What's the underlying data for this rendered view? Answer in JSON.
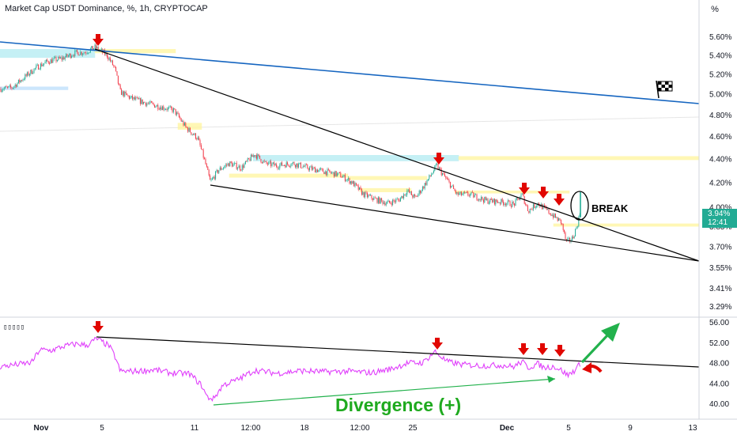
{
  "header": {
    "title": "Market Cap USDT Dominance, %, 1h, CRYPTOCAP",
    "scale_button": "%"
  },
  "colors": {
    "candle_up": "#22ab94",
    "candle_down": "#f23645",
    "rsi_line": "#e040fb",
    "trendline": "#000000",
    "blue_trendline": "#1565c0",
    "arrow_red": "#e10600",
    "arrow_green": "#22b14c",
    "divergence_text": "#1faa1f",
    "badge": "#22ab94"
  },
  "chart_data": [
    {
      "type": "candlestick",
      "title": "Market Cap USDT Dominance, %, 1h, CRYPTOCAP",
      "y_axis": {
        "scale": "log",
        "ticks": [
          "5.60%",
          "5.40%",
          "5.20%",
          "5.00%",
          "4.80%",
          "4.60%",
          "4.40%",
          "4.20%",
          "4.00%",
          "3.85%",
          "3.70%",
          "3.55%",
          "3.41%",
          "3.29%"
        ]
      },
      "x_axis": {
        "ticks": [
          "Nov",
          "5",
          "11",
          "12:00",
          "18",
          "12:00",
          "25",
          "Dec",
          "5",
          "9",
          "13"
        ]
      },
      "last_price": "3.94%",
      "countdown": "12:41",
      "anchor_points": [
        {
          "x": 0,
          "y": 5.05
        },
        {
          "x": 15,
          "y": 5.06
        },
        {
          "x": 30,
          "y": 5.16
        },
        {
          "x": 45,
          "y": 5.26
        },
        {
          "x": 60,
          "y": 5.33
        },
        {
          "x": 78,
          "y": 5.36
        },
        {
          "x": 95,
          "y": 5.42
        },
        {
          "x": 108,
          "y": 5.43
        },
        {
          "x": 120,
          "y": 5.48
        },
        {
          "x": 135,
          "y": 5.4
        },
        {
          "x": 145,
          "y": 5.26
        },
        {
          "x": 152,
          "y": 5.02
        },
        {
          "x": 165,
          "y": 4.96
        },
        {
          "x": 180,
          "y": 4.92
        },
        {
          "x": 200,
          "y": 4.88
        },
        {
          "x": 220,
          "y": 4.84
        },
        {
          "x": 235,
          "y": 4.68
        },
        {
          "x": 250,
          "y": 4.58
        },
        {
          "x": 258,
          "y": 4.4
        },
        {
          "x": 266,
          "y": 4.2
        },
        {
          "x": 276,
          "y": 4.3
        },
        {
          "x": 290,
          "y": 4.36
        },
        {
          "x": 305,
          "y": 4.32
        },
        {
          "x": 322,
          "y": 4.44
        },
        {
          "x": 335,
          "y": 4.36
        },
        {
          "x": 350,
          "y": 4.34
        },
        {
          "x": 370,
          "y": 4.36
        },
        {
          "x": 390,
          "y": 4.32
        },
        {
          "x": 410,
          "y": 4.29
        },
        {
          "x": 430,
          "y": 4.26
        },
        {
          "x": 445,
          "y": 4.2
        },
        {
          "x": 460,
          "y": 4.1
        },
        {
          "x": 475,
          "y": 4.06
        },
        {
          "x": 490,
          "y": 4.03
        },
        {
          "x": 505,
          "y": 4.06
        },
        {
          "x": 515,
          "y": 4.13
        },
        {
          "x": 525,
          "y": 4.07
        },
        {
          "x": 535,
          "y": 4.16
        },
        {
          "x": 545,
          "y": 4.26
        },
        {
          "x": 552,
          "y": 4.34
        },
        {
          "x": 565,
          "y": 4.22
        },
        {
          "x": 578,
          "y": 4.1
        },
        {
          "x": 595,
          "y": 4.1
        },
        {
          "x": 615,
          "y": 4.05
        },
        {
          "x": 635,
          "y": 4.04
        },
        {
          "x": 650,
          "y": 4.02
        },
        {
          "x": 660,
          "y": 4.1
        },
        {
          "x": 668,
          "y": 3.97
        },
        {
          "x": 680,
          "y": 4.03
        },
        {
          "x": 690,
          "y": 3.98
        },
        {
          "x": 700,
          "y": 3.93
        },
        {
          "x": 710,
          "y": 3.88
        },
        {
          "x": 716,
          "y": 3.73
        },
        {
          "x": 724,
          "y": 3.76
        },
        {
          "x": 730,
          "y": 3.86
        },
        {
          "x": 734,
          "y": 3.96
        }
      ],
      "supply_demand_zones": [
        {
          "x0": 0,
          "x1": 120,
          "y0": 5.37,
          "y1": 5.46,
          "color": "#b2ebf2"
        },
        {
          "x0": 120,
          "x1": 222,
          "y0": 5.42,
          "y1": 5.46,
          "color": "#fff59d"
        },
        {
          "x0": 0,
          "x1": 86,
          "y0": 5.04,
          "y1": 5.07,
          "color": "#bbdefb"
        },
        {
          "x0": 225,
          "x1": 255,
          "y0": 4.66,
          "y1": 4.72,
          "color": "#fff59d"
        },
        {
          "x0": 320,
          "x1": 580,
          "y0": 4.38,
          "y1": 4.43,
          "color": "#b2ebf2"
        },
        {
          "x0": 580,
          "x1": 884,
          "y0": 4.39,
          "y1": 4.42,
          "color": "#fff59d"
        },
        {
          "x0": 290,
          "x1": 440,
          "y0": 4.24,
          "y1": 4.27,
          "color": "#fff59d"
        },
        {
          "x0": 440,
          "x1": 540,
          "y0": 4.22,
          "y1": 4.25,
          "color": "#fff59d"
        },
        {
          "x0": 455,
          "x1": 520,
          "y0": 4.12,
          "y1": 4.15,
          "color": "#fff59d"
        },
        {
          "x0": 575,
          "x1": 720,
          "y0": 4.11,
          "y1": 4.13,
          "color": "#fff59d"
        },
        {
          "x0": 700,
          "x1": 884,
          "y0": 3.85,
          "y1": 3.87,
          "color": "#fff59d"
        }
      ],
      "annotations": [
        "BREAK"
      ]
    },
    {
      "type": "line",
      "series": [
        {
          "name": "",
          "color": "#e040fb"
        }
      ],
      "y_axis": {
        "ticks": [
          "56.00",
          "52.00",
          "48.00",
          "44.00",
          "40.00"
        ],
        "ylim": [
          37.5,
          56.3
        ]
      },
      "anchor_points": [
        {
          "x": 0,
          "y": 47.2
        },
        {
          "x": 20,
          "y": 47.6
        },
        {
          "x": 40,
          "y": 48.0
        },
        {
          "x": 50,
          "y": 50.5
        },
        {
          "x": 65,
          "y": 50.4
        },
        {
          "x": 80,
          "y": 51.2
        },
        {
          "x": 98,
          "y": 51.7
        },
        {
          "x": 110,
          "y": 51.4
        },
        {
          "x": 122,
          "y": 52.7
        },
        {
          "x": 138,
          "y": 51.3
        },
        {
          "x": 146,
          "y": 49.0
        },
        {
          "x": 152,
          "y": 46.3
        },
        {
          "x": 170,
          "y": 46.3
        },
        {
          "x": 195,
          "y": 46.6
        },
        {
          "x": 215,
          "y": 46.0
        },
        {
          "x": 240,
          "y": 45.8
        },
        {
          "x": 255,
          "y": 43.5
        },
        {
          "x": 262,
          "y": 41.2
        },
        {
          "x": 270,
          "y": 40.9
        },
        {
          "x": 282,
          "y": 43.6
        },
        {
          "x": 300,
          "y": 44.6
        },
        {
          "x": 322,
          "y": 46.5
        },
        {
          "x": 350,
          "y": 45.9
        },
        {
          "x": 380,
          "y": 46.4
        },
        {
          "x": 410,
          "y": 46.2
        },
        {
          "x": 440,
          "y": 46.3
        },
        {
          "x": 470,
          "y": 46.0
        },
        {
          "x": 495,
          "y": 46.8
        },
        {
          "x": 515,
          "y": 47.9
        },
        {
          "x": 535,
          "y": 48.0
        },
        {
          "x": 550,
          "y": 50.2
        },
        {
          "x": 565,
          "y": 48.2
        },
        {
          "x": 585,
          "y": 47.6
        },
        {
          "x": 610,
          "y": 47.4
        },
        {
          "x": 635,
          "y": 47.5
        },
        {
          "x": 650,
          "y": 47.2
        },
        {
          "x": 660,
          "y": 48.2
        },
        {
          "x": 668,
          "y": 47.0
        },
        {
          "x": 680,
          "y": 47.8
        },
        {
          "x": 688,
          "y": 47.0
        },
        {
          "x": 700,
          "y": 47.3
        },
        {
          "x": 710,
          "y": 46.5
        },
        {
          "x": 718,
          "y": 45.5
        },
        {
          "x": 726,
          "y": 46.4
        },
        {
          "x": 734,
          "y": 47.8
        }
      ],
      "annotations": [
        "Divergence (+)"
      ]
    }
  ]
}
